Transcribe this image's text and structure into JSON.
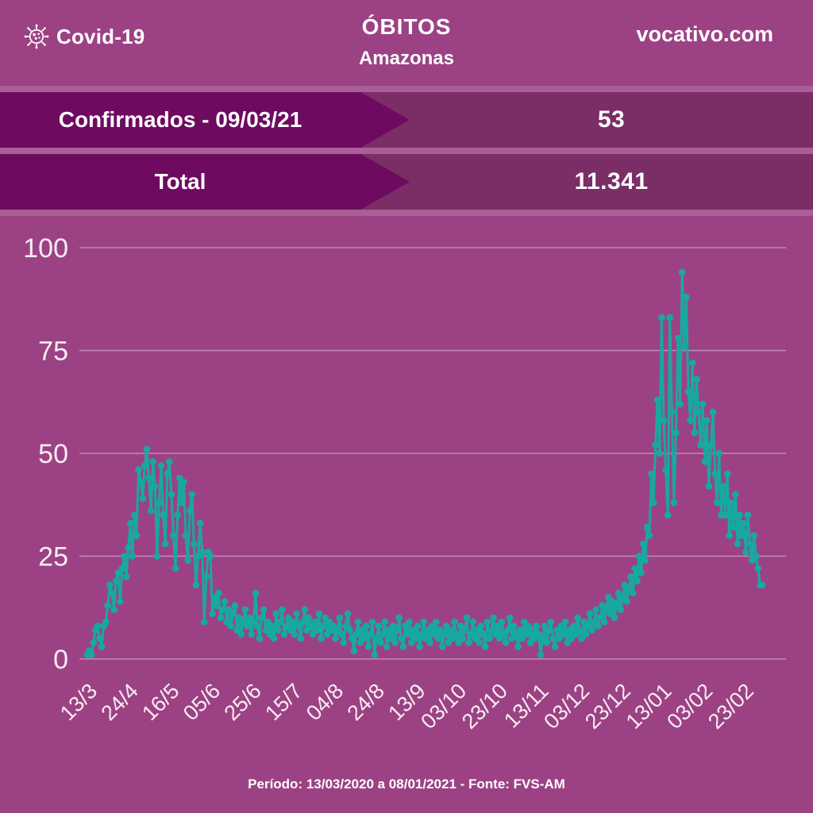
{
  "header": {
    "brand": "Covid-19",
    "title": "ÓBITOS",
    "subtitle": "Amazonas",
    "site": "vocativo.com"
  },
  "banners": [
    {
      "label": "Confirmados - 09/03/21",
      "value": "53"
    },
    {
      "label": "Total",
      "value": "11.341"
    }
  ],
  "footer": "Período: 13/03/2020 a 08/01/2021 - Fonte: FVS-AM",
  "icons": {
    "brand": "virus-icon"
  },
  "colors": {
    "background": "#9c4284",
    "banner_band": "#7b2d66",
    "banner_arrow": "#6e0a60",
    "banner_gap": "#a85f96",
    "line": "#17a9a1",
    "gridline": "rgba(255,255,255,0.38)",
    "text": "#ffffff"
  },
  "chart_data": {
    "type": "line",
    "title": "Óbitos diários por Covid-19 no Amazonas",
    "xlabel": "",
    "ylabel": "",
    "ylim": [
      0,
      100
    ],
    "yticks": [
      0,
      25,
      50,
      75,
      100
    ],
    "grid": "horizontal",
    "legend": "none",
    "marker": "circle",
    "xtick_every": 20,
    "xtick_labels": [
      "13/3",
      "24/4",
      "16/5",
      "05/6",
      "25/6",
      "15/7",
      "04/8",
      "24/8",
      "13/9",
      "03/10",
      "23/10",
      "13/11",
      "03/12",
      "23/12",
      "13/01",
      "03/02",
      "23/02"
    ],
    "values": [
      1,
      2,
      1,
      4,
      7,
      8,
      5,
      3,
      8,
      9,
      13,
      18,
      16,
      12,
      19,
      21,
      14,
      22,
      25,
      20,
      27,
      33,
      25,
      35,
      30,
      46,
      43,
      39,
      47,
      51,
      44,
      36,
      48,
      42,
      25,
      38,
      47,
      35,
      28,
      45,
      48,
      40,
      30,
      22,
      35,
      44,
      38,
      43,
      30,
      24,
      36,
      40,
      28,
      18,
      25,
      33,
      26,
      9,
      20,
      26,
      25,
      11,
      15,
      13,
      16,
      10,
      12,
      14,
      9,
      12,
      8,
      11,
      13,
      7,
      10,
      6,
      9,
      12,
      8,
      10,
      6,
      9,
      16,
      8,
      5,
      10,
      12,
      7,
      9,
      6,
      8,
      5,
      11,
      7,
      9,
      12,
      6,
      8,
      10,
      7,
      9,
      6,
      11,
      8,
      5,
      9,
      12,
      7,
      10,
      8,
      6,
      9,
      7,
      11,
      5,
      8,
      10,
      6,
      9,
      7,
      8,
      5,
      7,
      10,
      6,
      4,
      8,
      11,
      7,
      5,
      2,
      6,
      9,
      4,
      7,
      5,
      8,
      3,
      6,
      9,
      1,
      5,
      8,
      4,
      6,
      9,
      3,
      7,
      5,
      8,
      4,
      7,
      10,
      5,
      3,
      8,
      6,
      9,
      4,
      7,
      5,
      8,
      3,
      6,
      9,
      5,
      7,
      4,
      8,
      6,
      9,
      5,
      7,
      3,
      6,
      8,
      4,
      7,
      5,
      9,
      6,
      4,
      8,
      5,
      7,
      10,
      4,
      6,
      9,
      5,
      7,
      4,
      8,
      6,
      3,
      9,
      5,
      7,
      10,
      6,
      8,
      5,
      9,
      6,
      4,
      7,
      10,
      5,
      8,
      6,
      3,
      7,
      5,
      9,
      6,
      8,
      4,
      7,
      5,
      8,
      6,
      1,
      5,
      8,
      4,
      7,
      9,
      5,
      3,
      7,
      5,
      8,
      6,
      9,
      4,
      7,
      5,
      8,
      6,
      10,
      7,
      5,
      9,
      6,
      8,
      11,
      7,
      9,
      12,
      8,
      10,
      13,
      9,
      12,
      15,
      11,
      14,
      10,
      13,
      16,
      12,
      15,
      18,
      14,
      17,
      20,
      16,
      22,
      19,
      25,
      21,
      28,
      24,
      32,
      30,
      45,
      38,
      52,
      63,
      50,
      83,
      58,
      46,
      35,
      83,
      60,
      38,
      55,
      78,
      62,
      94,
      76,
      88,
      65,
      58,
      72,
      55,
      68,
      60,
      52,
      62,
      48,
      58,
      42,
      52,
      60,
      45,
      38,
      50,
      35,
      42,
      35,
      45,
      30,
      38,
      32,
      40,
      28,
      35,
      30,
      33,
      26,
      35,
      28,
      24,
      30,
      25,
      22,
      18,
      18
    ]
  }
}
